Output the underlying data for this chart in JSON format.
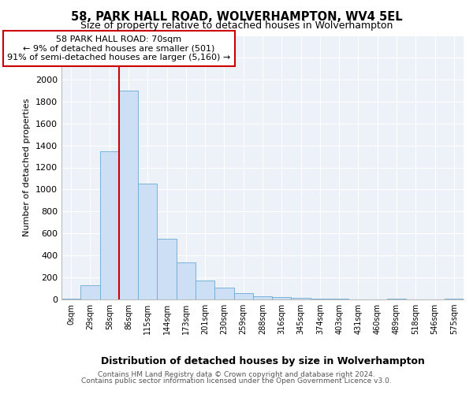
{
  "title": "58, PARK HALL ROAD, WOLVERHAMPTON, WV4 5EL",
  "subtitle": "Size of property relative to detached houses in Wolverhampton",
  "xlabel": "Distribution of detached houses by size in Wolverhampton",
  "ylabel": "Number of detached properties",
  "footer_line1": "Contains HM Land Registry data © Crown copyright and database right 2024.",
  "footer_line2": "Contains public sector information licensed under the Open Government Licence v3.0.",
  "annotation_title": "58 PARK HALL ROAD: 70sqm",
  "annotation_line2": "← 9% of detached houses are smaller (501)",
  "annotation_line3": "91% of semi-detached houses are larger (5,160) →",
  "bar_labels": [
    "0sqm",
    "29sqm",
    "58sqm",
    "86sqm",
    "115sqm",
    "144sqm",
    "173sqm",
    "201sqm",
    "230sqm",
    "259sqm",
    "288sqm",
    "316sqm",
    "345sqm",
    "374sqm",
    "403sqm",
    "431sqm",
    "460sqm",
    "489sqm",
    "518sqm",
    "546sqm",
    "575sqm"
  ],
  "bar_values": [
    10,
    130,
    1350,
    1900,
    1050,
    550,
    340,
    170,
    105,
    55,
    30,
    20,
    15,
    10,
    5,
    0,
    0,
    5,
    0,
    0,
    5
  ],
  "bar_color": "#ccdff5",
  "bar_edge_color": "#6aaad4",
  "property_line_color": "#cc0000",
  "property_line_x": 2.5,
  "annotation_box_edgecolor": "#cc0000",
  "ylim_max": 2400,
  "ytick_step": 200,
  "bg_color": "#edf2f9",
  "title_fontsize": 10.5,
  "subtitle_fontsize": 9,
  "ylabel_fontsize": 8,
  "xlabel_fontsize": 9,
  "tick_fontsize": 8,
  "xtick_fontsize": 7,
  "annotation_fontsize": 8,
  "footer_fontsize": 6.5
}
